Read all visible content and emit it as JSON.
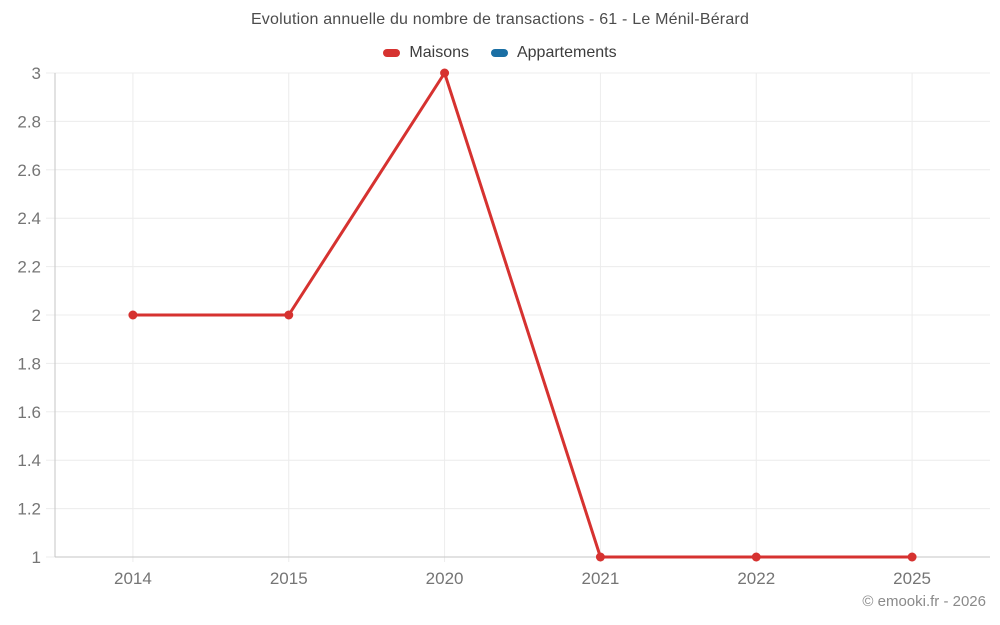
{
  "header": {
    "title": "Evolution annuelle du nombre de transactions - 61 - Le Ménil-Bérard"
  },
  "legend": {
    "items": [
      {
        "label": "Maisons",
        "color": "#d63230"
      },
      {
        "label": "Appartements",
        "color": "#1a6fa4"
      }
    ]
  },
  "footer": {
    "copyright": "© emooki.fr - 2026"
  },
  "chart_data": {
    "type": "line",
    "title": "Evolution annuelle du nombre de transactions - 61 - Le Ménil-Bérard",
    "categories": [
      "2014",
      "2015",
      "2020",
      "2021",
      "2022",
      "2025"
    ],
    "series": [
      {
        "name": "Maisons",
        "color": "#d63230",
        "values": [
          2,
          2,
          3,
          1,
          1,
          1
        ]
      },
      {
        "name": "Appartements",
        "color": "#1a6fa4",
        "values": [
          null,
          null,
          null,
          null,
          null,
          null
        ]
      }
    ],
    "xlabel": "",
    "ylabel": "",
    "ylim": [
      1,
      3
    ],
    "yticks": [
      1,
      1.2,
      1.4,
      1.6,
      1.8,
      2,
      2.2,
      2.4,
      2.6,
      2.8,
      3
    ],
    "grid": true,
    "legend_position": "top",
    "point_markers": true,
    "colors": {
      "grid_line": "#ececec",
      "axis_line": "#c6c6c6",
      "tick_label": "#757575"
    }
  }
}
